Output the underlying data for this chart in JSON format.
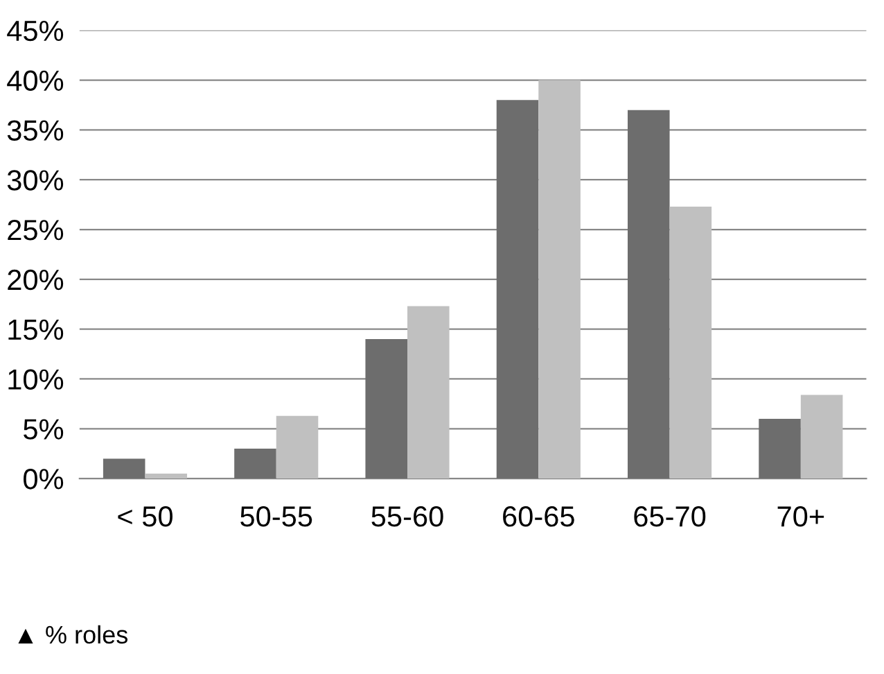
{
  "chart_data": {
    "type": "bar",
    "categories": [
      "< 50",
      "50-55",
      "55-60",
      "60-65",
      "65-70",
      "70+"
    ],
    "series": [
      {
        "color": "#6d6d6d",
        "values": [
          2,
          3,
          14,
          38,
          37,
          6
        ]
      },
      {
        "color": "#c0c0c0",
        "values": [
          0.5,
          6.3,
          17.3,
          40,
          27.3,
          8.4
        ]
      }
    ],
    "ylim": [
      0,
      45
    ],
    "yticks": [
      {
        "value": 0,
        "label": "0%"
      },
      {
        "value": 5,
        "label": "5%"
      },
      {
        "value": 10,
        "label": "10%"
      },
      {
        "value": 15,
        "label": "15%"
      },
      {
        "value": 20,
        "label": "20%"
      },
      {
        "value": 25,
        "label": "25%"
      },
      {
        "value": 30,
        "label": "30%"
      },
      {
        "value": 35,
        "label": "35%"
      },
      {
        "value": 40,
        "label": "40%"
      },
      {
        "value": 45,
        "label": "45%"
      }
    ],
    "grid": "y",
    "annotations": [
      "▲ % roles"
    ]
  }
}
